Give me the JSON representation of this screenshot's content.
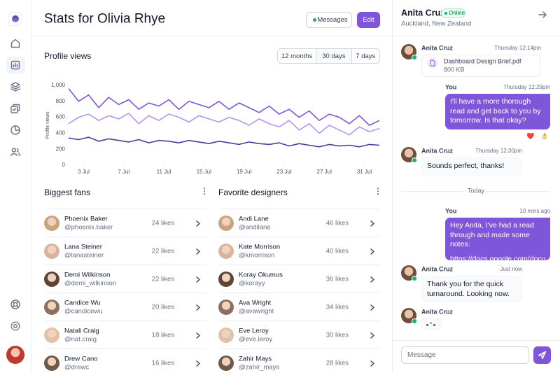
{
  "header": {
    "title": "Stats for Olivia Rhye",
    "buttons": [
      "Messages",
      "Edit"
    ]
  },
  "range_tabs": {
    "options": [
      "12 months",
      "30 days",
      "7 days"
    ],
    "selected": 1
  },
  "chart_data": {
    "type": "line",
    "title": "Profile views",
    "ylabel": "Profile views",
    "x": [
      1.5,
      2.5,
      3.5,
      4.5,
      5.5,
      6.5,
      7.5,
      8.5,
      9.5,
      10.5,
      11.5,
      12.5,
      13.5,
      14.5,
      15.5,
      16.5,
      17.5,
      18.5,
      19.5,
      20.5,
      21.5,
      22.5,
      23.5,
      24.5,
      25.5,
      26.5,
      27.5,
      28.5,
      29.5,
      30.5,
      31.5,
      32.5
    ],
    "xlim": [
      1.5,
      32.5
    ],
    "xticks": [
      {
        "value": 3,
        "label": "3 Jul"
      },
      {
        "value": 7,
        "label": "7 Jul"
      },
      {
        "value": 11,
        "label": "11 Jul"
      },
      {
        "value": 15,
        "label": "15 Jul"
      },
      {
        "value": 19,
        "label": "19 Jul"
      },
      {
        "value": 23,
        "label": "23 Jul"
      },
      {
        "value": 27,
        "label": "27 Jul"
      },
      {
        "value": 31,
        "label": "31 Jul"
      }
    ],
    "ylim": [
      0,
      1000
    ],
    "yticks": [
      0,
      200,
      400,
      600,
      800,
      {
        "value": 1000,
        "label": "1,000"
      }
    ],
    "grid": false,
    "series": [
      {
        "color": "#7f56d9",
        "values": [
          960,
          800,
          880,
          720,
          850,
          760,
          820,
          700,
          780,
          740,
          820,
          700,
          800,
          760,
          720,
          800,
          700,
          780,
          720,
          660,
          740,
          640,
          700,
          600,
          680,
          560,
          640,
          600,
          520,
          620,
          500,
          560
        ]
      },
      {
        "color": "#b692f6",
        "values": [
          520,
          600,
          640,
          560,
          620,
          580,
          650,
          520,
          620,
          560,
          640,
          600,
          540,
          620,
          580,
          540,
          600,
          560,
          500,
          580,
          520,
          480,
          560,
          440,
          520,
          400,
          500,
          440,
          380,
          480,
          420,
          460
        ]
      },
      {
        "color": "#53389e",
        "values": [
          340,
          320,
          350,
          300,
          330,
          310,
          290,
          320,
          280,
          310,
          300,
          280,
          310,
          290,
          270,
          300,
          280,
          260,
          290,
          270,
          260,
          280,
          240,
          270,
          250,
          230,
          260,
          240,
          250,
          230,
          260,
          250
        ]
      }
    ]
  },
  "biggest_fans": {
    "title": "Biggest fans",
    "rows": [
      {
        "name": "Phoenix Baker",
        "handle": "@phoenix.baker",
        "likes": "24 likes"
      },
      {
        "name": "Lana Steiner",
        "handle": "@lanasteiner",
        "likes": "22 likes"
      },
      {
        "name": "Demi Wilkinson",
        "handle": "@demi_wilkinson",
        "likes": "22 likes"
      },
      {
        "name": "Candice Wu",
        "handle": "@candicewu",
        "likes": "20 likes"
      },
      {
        "name": "Natali Craig",
        "handle": "@nat.craig",
        "likes": "18 likes"
      },
      {
        "name": "Drew Cano",
        "handle": "@drewc",
        "likes": "16 likes"
      }
    ]
  },
  "favorite_designers": {
    "title": "Favorite designers",
    "rows": [
      {
        "name": "Andi Lane",
        "handle": "@andilane",
        "likes": "46 likes"
      },
      {
        "name": "Kate Morrison",
        "handle": "@kmorrison",
        "likes": "40 likes"
      },
      {
        "name": "Koray Okumus",
        "handle": "@korayy",
        "likes": "36 likes"
      },
      {
        "name": "Ava Wright",
        "handle": "@avawright",
        "likes": "34 likes"
      },
      {
        "name": "Eve Leroy",
        "handle": "@eve.leroy",
        "likes": "30 likes"
      },
      {
        "name": "Zahir Mays",
        "handle": "@zahir_mays",
        "likes": "28 likes"
      }
    ]
  },
  "chat": {
    "name": "Anita Cruz",
    "status": "Online",
    "location": "Auckland, New Zealand",
    "messages": [
      {
        "sender": "Anita Cruz",
        "time": "Thursday 12:14pm",
        "file_name": "Dashboard Design Brief.pdf",
        "file_size": "800 KB"
      },
      {
        "sender": "You",
        "time": "Thursday 12:29pm",
        "text": "I'll have a more thorough read and get back to you by tomorrow. Is that okay?",
        "reactions": [
          "❤️",
          "👌"
        ]
      },
      {
        "sender": "Anita Cruz",
        "time": "Thursday 12:30pm",
        "text": "Sounds perfect, thanks!"
      },
      {
        "divider": "Today"
      },
      {
        "sender": "You",
        "time": "10 mins ago",
        "text": "Hey Anita, I've had a read through and made some notes:",
        "link": "https://docs.google.com/docu..."
      },
      {
        "sender": "Anita Cruz",
        "time": "Just now",
        "text": "Thank you for the quick turnaround. Looking now."
      },
      {
        "sender": "Anita Cruz"
      }
    ],
    "input_placeholder": "Message"
  }
}
